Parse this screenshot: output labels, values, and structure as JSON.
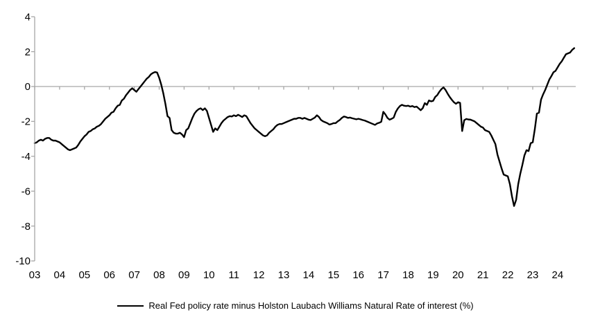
{
  "chart_data": {
    "type": "line",
    "title": "",
    "axis_color": "#a6a6a6",
    "line_color": "#000000",
    "background_color": "#ffffff",
    "grid": {
      "zero_line": true,
      "other_gridlines": false
    },
    "legend": {
      "position": "bottom",
      "label": "Real Fed policy rate minus Holston Laubach Williams Natural Rate of interest (%)",
      "swatch_color": "#000000"
    },
    "x_axis": {
      "tick_labels": [
        "03",
        "04",
        "05",
        "06",
        "07",
        "08",
        "09",
        "10",
        "11",
        "12",
        "13",
        "14",
        "15",
        "16",
        "17",
        "18",
        "19",
        "20",
        "21",
        "22",
        "23",
        "24"
      ],
      "start_year": 2003,
      "points_per_year": 12
    },
    "y_axis": {
      "ticks": [
        4,
        2,
        0,
        -2,
        -4,
        -6,
        -8,
        -10
      ],
      "tick_labels": [
        "4",
        "2",
        "0",
        "-2",
        "-4",
        "-6",
        "-8",
        "-10"
      ],
      "range": [
        -10,
        4
      ]
    },
    "series": [
      {
        "name": "Real Fed policy rate minus Holston Laubach Williams Natural Rate of interest (%)",
        "frequency": "monthly",
        "x_start": 2003.0,
        "x_step": 0.08333,
        "values": [
          -3.25,
          -3.2,
          -3.1,
          -3.05,
          -3.1,
          -3.0,
          -2.95,
          -2.95,
          -3.05,
          -3.1,
          -3.1,
          -3.15,
          -3.2,
          -3.3,
          -3.4,
          -3.5,
          -3.6,
          -3.65,
          -3.6,
          -3.55,
          -3.5,
          -3.35,
          -3.15,
          -3.0,
          -2.85,
          -2.75,
          -2.6,
          -2.55,
          -2.45,
          -2.4,
          -2.3,
          -2.25,
          -2.15,
          -2.0,
          -1.85,
          -1.75,
          -1.65,
          -1.5,
          -1.45,
          -1.25,
          -1.1,
          -1.05,
          -0.8,
          -0.7,
          -0.5,
          -0.35,
          -0.2,
          -0.1,
          -0.2,
          -0.3,
          -0.15,
          0.0,
          0.15,
          0.3,
          0.45,
          0.55,
          0.7,
          0.78,
          0.83,
          0.8,
          0.5,
          0.1,
          -0.4,
          -1.0,
          -1.7,
          -1.8,
          -2.5,
          -2.65,
          -2.7,
          -2.7,
          -2.65,
          -2.75,
          -2.9,
          -2.5,
          -2.4,
          -2.1,
          -1.8,
          -1.55,
          -1.4,
          -1.3,
          -1.25,
          -1.35,
          -1.25,
          -1.4,
          -1.8,
          -2.2,
          -2.6,
          -2.4,
          -2.5,
          -2.3,
          -2.1,
          -1.95,
          -1.85,
          -1.75,
          -1.7,
          -1.72,
          -1.65,
          -1.7,
          -1.62,
          -1.68,
          -1.75,
          -1.65,
          -1.7,
          -1.9,
          -2.1,
          -2.25,
          -2.4,
          -2.5,
          -2.6,
          -2.7,
          -2.8,
          -2.85,
          -2.8,
          -2.65,
          -2.55,
          -2.45,
          -2.3,
          -2.2,
          -2.15,
          -2.15,
          -2.1,
          -2.05,
          -2.0,
          -1.95,
          -1.9,
          -1.85,
          -1.85,
          -1.8,
          -1.8,
          -1.85,
          -1.8,
          -1.85,
          -1.9,
          -1.92,
          -1.85,
          -1.78,
          -1.65,
          -1.75,
          -1.92,
          -2.0,
          -2.05,
          -2.1,
          -2.18,
          -2.15,
          -2.1,
          -2.1,
          -2.0,
          -1.92,
          -1.8,
          -1.72,
          -1.75,
          -1.8,
          -1.78,
          -1.82,
          -1.85,
          -1.88,
          -1.85,
          -1.88,
          -1.92,
          -1.95,
          -2.0,
          -2.05,
          -2.1,
          -2.15,
          -2.2,
          -2.12,
          -2.08,
          -2.02,
          -1.45,
          -1.6,
          -1.8,
          -1.9,
          -1.85,
          -1.78,
          -1.46,
          -1.26,
          -1.12,
          -1.05,
          -1.1,
          -1.12,
          -1.1,
          -1.15,
          -1.12,
          -1.18,
          -1.15,
          -1.25,
          -1.36,
          -1.24,
          -0.95,
          -1.05,
          -0.8,
          -0.85,
          -0.82,
          -0.6,
          -0.49,
          -0.3,
          -0.15,
          -0.05,
          -0.2,
          -0.41,
          -0.6,
          -0.76,
          -0.9,
          -0.99,
          -0.9,
          -0.94,
          -2.55,
          -1.93,
          -1.86,
          -1.89,
          -1.9,
          -1.95,
          -2.0,
          -2.1,
          -2.2,
          -2.3,
          -2.35,
          -2.5,
          -2.55,
          -2.6,
          -2.8,
          -3.05,
          -3.3,
          -3.9,
          -4.3,
          -4.7,
          -5.05,
          -5.1,
          -5.15,
          -5.6,
          -6.3,
          -6.85,
          -6.5,
          -5.6,
          -5.0,
          -4.5,
          -3.95,
          -3.65,
          -3.7,
          -3.25,
          -3.2,
          -2.45,
          -1.55,
          -1.5,
          -0.75,
          -0.45,
          -0.2,
          0.1,
          0.4,
          0.6,
          0.82,
          0.9,
          1.1,
          1.3,
          1.45,
          1.65,
          1.85,
          1.9,
          1.95,
          2.1,
          2.2
        ]
      }
    ]
  }
}
